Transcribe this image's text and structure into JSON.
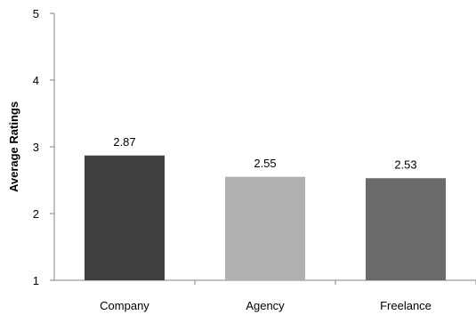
{
  "chart_data": {
    "type": "bar",
    "title": "",
    "xlabel": "",
    "ylabel": "Average Ratings",
    "categories": [
      "Company",
      "Agency",
      "Freelance"
    ],
    "values": [
      2.87,
      2.55,
      2.53
    ],
    "data_labels": [
      "2.87",
      "2.55",
      "2.53"
    ],
    "bar_colors": [
      "#404040",
      "#b0b0b0",
      "#6b6b6b"
    ],
    "ylim": [
      1,
      5
    ],
    "yticks": [
      1,
      2,
      3,
      4,
      5
    ],
    "ytick_labels": [
      "1",
      "2",
      "3",
      "4",
      "5"
    ],
    "grid": false,
    "legend": "none"
  }
}
